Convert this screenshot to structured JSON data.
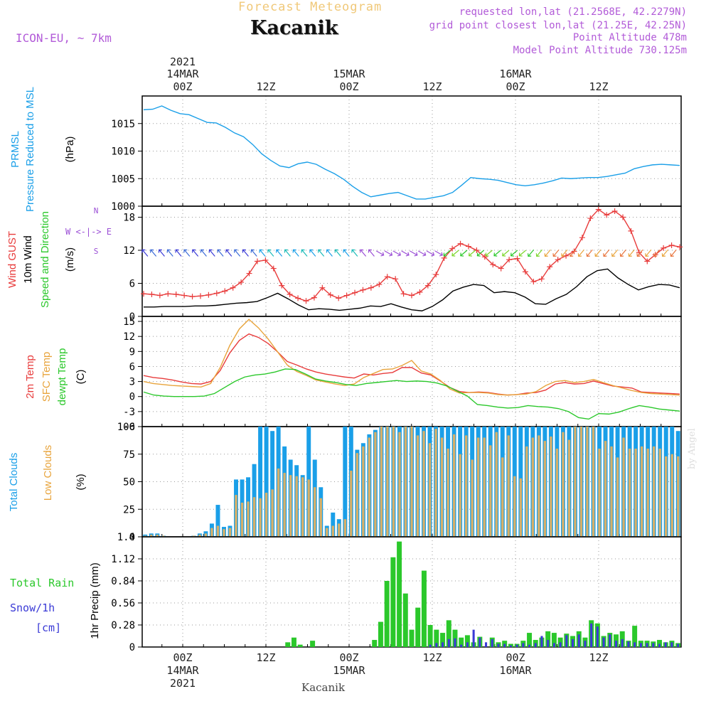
{
  "header": {
    "super_title": "Forecast Meteogram",
    "location": "Kacanik",
    "model": "ICON-EU, ~ 7km",
    "requested": "requested lon,lat (21.2568E, 42.2279N)",
    "grid_point": "grid point closest lon,lat (21.25E, 42.25N)",
    "point_altitude": "Point Altitude 478m",
    "model_altitude": "Model Point Altitude 730.125m",
    "footer": "Kacanik",
    "watermark": "by Angel"
  },
  "colors": {
    "blue": "#1a9fe8",
    "red": "#e83c3c",
    "orange": "#e8a43c",
    "green": "#2bc82b",
    "purple": "#9b4fd6",
    "navy": "#3a3ad6",
    "tan": "#d6b06a",
    "black": "#000000"
  },
  "chart_data": [
    {
      "type": "line",
      "panel": "pressure",
      "ylabel_lines": [
        "PRMSL",
        "Pressure Reduced to MSL",
        "(hPa)"
      ],
      "ylim": [
        1000,
        1020
      ],
      "yticks": [
        1000,
        1005,
        1010,
        1015
      ],
      "series": [
        {
          "name": "PRMSL",
          "values": [
            1017.5,
            1017.6,
            1018.2,
            1017.4,
            1016.8,
            1016.6,
            1015.9,
            1015.2,
            1015.1,
            1014.3,
            1013.3,
            1012.6,
            1011.2,
            1009.5,
            1008.3,
            1007.3,
            1007.0,
            1007.7,
            1008.0,
            1007.6,
            1006.7,
            1005.9,
            1004.9,
            1003.6,
            1002.5,
            1001.7,
            1002.0,
            1002.3,
            1002.5,
            1001.9,
            1001.3,
            1001.3,
            1001.6,
            1001.9,
            1002.5,
            1003.8,
            1005.2,
            1005.0,
            1004.9,
            1004.7,
            1004.3,
            1003.9,
            1003.7,
            1003.9,
            1004.2,
            1004.6,
            1005.1,
            1005.0,
            1005.1,
            1005.2,
            1005.2,
            1005.4,
            1005.7,
            1006.0,
            1006.8,
            1007.2,
            1007.5,
            1007.6,
            1007.5,
            1007.4
          ]
        }
      ]
    },
    {
      "type": "line",
      "panel": "wind",
      "ylabel_lines": [
        "Wind GUST",
        "10m Wind",
        "Speed and Direction",
        "(m/s)"
      ],
      "compass": "W <-|-> E",
      "ylim": [
        0,
        20
      ],
      "yticks": [
        0,
        6,
        12,
        18
      ],
      "series": [
        {
          "name": "Wind GUST",
          "values": [
            4.1,
            4.0,
            3.8,
            4.1,
            4.0,
            3.8,
            3.6,
            3.7,
            3.9,
            4.2,
            4.6,
            5.2,
            6.2,
            7.8,
            10.0,
            10.2,
            8.7,
            5.6,
            4.0,
            3.3,
            2.8,
            3.4,
            5.2,
            3.9,
            3.3,
            3.8,
            4.3,
            4.8,
            5.2,
            5.8,
            7.2,
            6.8,
            4.1,
            3.8,
            4.4,
            5.6,
            7.6,
            10.6,
            12.3,
            13.2,
            12.7,
            12.0,
            10.8,
            9.4,
            8.7,
            10.3,
            10.5,
            8.1,
            6.3,
            6.8,
            9.0,
            10.3,
            11.0,
            11.8,
            14.3,
            17.8,
            19.4,
            18.4,
            19.1,
            18.0,
            15.5,
            11.6,
            10.0,
            11.2,
            12.4,
            12.9,
            12.6
          ]
        },
        {
          "name": "10m Wind",
          "values": [
            1.7,
            1.7,
            1.8,
            1.8,
            1.8,
            1.9,
            1.9,
            2.0,
            2.2,
            2.4,
            2.5,
            2.7,
            3.4,
            4.2,
            3.2,
            2.1,
            1.2,
            1.4,
            1.3,
            1.1,
            1.3,
            1.5,
            1.9,
            1.8,
            2.3,
            1.7,
            1.2,
            1.0,
            1.8,
            3.0,
            4.6,
            5.3,
            5.8,
            5.6,
            4.3,
            4.5,
            4.3,
            3.5,
            2.3,
            2.2,
            3.2,
            4.0,
            5.4,
            7.2,
            8.3,
            8.6,
            7.0,
            5.8,
            4.8,
            5.4,
            5.8,
            5.7,
            5.2
          ]
        }
      ]
    },
    {
      "type": "line",
      "panel": "temperature",
      "ylabel_lines": [
        "2m Temp",
        "SFC Temp",
        "dewpt Temp",
        "(C)"
      ],
      "ylim": [
        -6,
        16
      ],
      "yticks": [
        -6,
        -3,
        0,
        3,
        6,
        9,
        12,
        15
      ],
      "series": [
        {
          "name": "2m Temp",
          "values": [
            4.2,
            3.8,
            3.6,
            3.3,
            2.9,
            2.6,
            2.5,
            3.0,
            5.2,
            8.7,
            11.2,
            12.5,
            11.8,
            10.6,
            8.9,
            7.0,
            6.3,
            5.5,
            4.9,
            4.5,
            4.2,
            3.9,
            3.7,
            4.5,
            4.3,
            4.6,
            4.8,
            5.8,
            5.8,
            4.7,
            4.3,
            3.1,
            1.8,
            1.0,
            0.8,
            0.9,
            0.8,
            0.5,
            0.3,
            0.4,
            0.7,
            0.8,
            1.3,
            2.5,
            2.8,
            2.5,
            2.6,
            3.1,
            2.6,
            2.1,
            1.9,
            1.7,
            0.9,
            0.8,
            0.7,
            0.6,
            0.5
          ]
        },
        {
          "name": "SFC Temp",
          "values": [
            3.0,
            2.6,
            2.4,
            2.2,
            2.1,
            2.0,
            1.9,
            2.6,
            5.8,
            10.2,
            13.5,
            15.4,
            13.7,
            11.5,
            8.9,
            6.3,
            5.0,
            4.2,
            3.3,
            2.9,
            2.5,
            2.2,
            2.5,
            3.8,
            4.6,
            5.4,
            5.5,
            6.2,
            7.2,
            5.1,
            4.5,
            3.2,
            1.5,
            0.7,
            0.8,
            0.8,
            0.7,
            0.4,
            0.3,
            0.4,
            0.5,
            1.0,
            2.2,
            3.0,
            3.2,
            2.8,
            3.0,
            3.4,
            2.8,
            2.2,
            1.7,
            1.2,
            0.8,
            0.6,
            0.5,
            0.4,
            0.3
          ]
        },
        {
          "name": "dewpt Temp",
          "values": [
            0.9,
            0.3,
            0.1,
            0.0,
            0.0,
            0.0,
            0.1,
            0.6,
            1.8,
            3.0,
            3.9,
            4.3,
            4.5,
            4.9,
            5.5,
            5.4,
            4.5,
            3.5,
            3.1,
            2.8,
            2.4,
            2.2,
            2.6,
            2.8,
            3.0,
            3.2,
            3.0,
            3.1,
            3.0,
            2.7,
            2.1,
            1.1,
            0.1,
            -1.6,
            -1.8,
            -2.1,
            -2.3,
            -2.2,
            -1.8,
            -2.0,
            -2.1,
            -2.4,
            -3.0,
            -4.2,
            -4.5,
            -3.4,
            -3.5,
            -3.1,
            -2.4,
            -1.8,
            -2.1,
            -2.5,
            -2.7,
            -2.9
          ]
        }
      ]
    },
    {
      "type": "bar",
      "panel": "clouds",
      "ylabel_lines": [
        "Total Clouds",
        "Low Clouds",
        "(%)"
      ],
      "ylim": [
        0,
        100
      ],
      "yticks": [
        0,
        25,
        50,
        75,
        100
      ],
      "series": [
        {
          "name": "Total Clouds",
          "values": [
            2,
            3,
            3,
            1,
            0,
            0,
            0,
            0,
            1,
            3,
            5,
            12,
            29,
            9,
            10,
            52,
            52,
            54,
            66,
            100,
            100,
            96,
            100,
            82,
            70,
            65,
            56,
            100,
            70,
            45,
            10,
            22,
            16,
            100,
            100,
            79,
            85,
            93,
            97,
            100,
            100,
            100,
            100,
            100,
            100,
            100,
            100,
            100,
            100,
            100,
            100,
            100,
            100,
            100,
            100,
            100,
            100,
            100,
            100,
            100,
            100,
            100,
            100,
            100,
            100,
            100,
            100,
            100,
            100,
            100,
            100,
            100,
            100,
            100,
            100,
            100,
            100,
            100,
            100,
            100,
            100,
            100,
            100,
            100,
            100,
            100,
            100,
            100,
            96
          ]
        },
        {
          "name": "Low Clouds",
          "values": [
            1,
            2,
            2,
            1,
            0,
            0,
            0,
            0,
            1,
            2,
            3,
            8,
            10,
            7,
            8,
            38,
            31,
            32,
            36,
            35,
            40,
            43,
            62,
            58,
            56,
            55,
            54,
            52,
            45,
            35,
            8,
            10,
            12,
            16,
            60,
            76,
            82,
            90,
            95,
            100,
            100,
            100,
            95,
            100,
            100,
            92,
            96,
            85,
            98,
            90,
            80,
            93,
            75,
            92,
            70,
            90,
            90,
            83,
            95,
            72,
            92,
            55,
            53,
            82,
            90,
            92,
            87,
            91,
            80,
            95,
            88,
            100,
            100,
            100,
            100,
            80,
            87,
            82,
            72,
            90,
            80,
            80,
            82,
            80,
            82,
            80,
            73,
            75,
            73
          ]
        }
      ]
    },
    {
      "type": "bar",
      "panel": "precipitation",
      "ylabel_lines": [
        "Total Rain",
        "Snow/1h",
        "[cm]",
        "1hr Precip (mm)"
      ],
      "ylim": [
        0,
        1.4
      ],
      "yticks": [
        0,
        0.28,
        0.56,
        0.84,
        1.12,
        1.4
      ],
      "series": [
        {
          "name": "Total Rain",
          "values": [
            0,
            0,
            0,
            0,
            0,
            0,
            0,
            0,
            0,
            0,
            0,
            0,
            0,
            0,
            0,
            0,
            0,
            0,
            0,
            0,
            0,
            0,
            0,
            0.06,
            0.12,
            0.03,
            0,
            0.08,
            0,
            0,
            0,
            0,
            0,
            0,
            0,
            0,
            0,
            0.09,
            0.32,
            0.84,
            1.14,
            1.34,
            0.68,
            0.22,
            0.5,
            0.97,
            0.28,
            0.22,
            0.18,
            0.34,
            0.22,
            0.12,
            0.15,
            0.06,
            0.13,
            0,
            0.12,
            0.06,
            0.08,
            0.04,
            0.04,
            0.08,
            0.18,
            0.09,
            0.12,
            0.2,
            0.18,
            0.12,
            0.17,
            0.14,
            0.2,
            0.12,
            0.34,
            0.3,
            0.14,
            0.18,
            0.16,
            0.2,
            0.08,
            0.27,
            0.08,
            0.08,
            0.07,
            0.09,
            0.06,
            0.08,
            0.05
          ]
        },
        {
          "name": "Snow/1h",
          "values": [
            0,
            0,
            0,
            0,
            0,
            0,
            0,
            0,
            0,
            0,
            0,
            0,
            0,
            0,
            0,
            0,
            0,
            0,
            0,
            0,
            0,
            0,
            0,
            0,
            0,
            0,
            0,
            0,
            0,
            0,
            0,
            0,
            0,
            0,
            0,
            0,
            0,
            0,
            0,
            0,
            0,
            0,
            0,
            0,
            0,
            0,
            0.03,
            0.05,
            0.06,
            0.1,
            0.11,
            0.03,
            0.06,
            0.22,
            0.12,
            0.06,
            0.1,
            0.04,
            0.04,
            0.02,
            0.03,
            0.05,
            0.03,
            0.05,
            0.14,
            0.09,
            0.05,
            0.06,
            0.15,
            0.1,
            0.16,
            0.08,
            0.3,
            0.26,
            0.12,
            0.16,
            0.08,
            0.1,
            0.07,
            0.06,
            0.05,
            0.05,
            0.05,
            0.04,
            0.06,
            0.06,
            0.04
          ]
        }
      ]
    }
  ],
  "xaxis": {
    "top_labels": [
      {
        "top": "2021",
        "mid": "14MAR",
        "bot": "00Z",
        "hour": 0
      },
      {
        "top": "",
        "mid": "",
        "bot": "12Z",
        "hour": 12
      },
      {
        "top": "",
        "mid": "15MAR",
        "bot": "00Z",
        "hour": 24
      },
      {
        "top": "",
        "mid": "",
        "bot": "12Z",
        "hour": 36
      },
      {
        "top": "",
        "mid": "16MAR",
        "bot": "00Z",
        "hour": 48
      },
      {
        "top": "",
        "mid": "",
        "bot": "12Z",
        "hour": 60
      }
    ],
    "bottom_labels": [
      {
        "a": "00Z",
        "b": "14MAR",
        "c": "2021",
        "hour": 0
      },
      {
        "a": "12Z",
        "b": "",
        "c": "",
        "hour": 12
      },
      {
        "a": "00Z",
        "b": "15MAR",
        "c": "",
        "hour": 24
      },
      {
        "a": "12Z",
        "b": "",
        "c": "",
        "hour": 36
      },
      {
        "a": "00Z",
        "b": "16MAR",
        "c": "",
        "hour": 48
      },
      {
        "a": "12Z",
        "b": "",
        "c": "",
        "hour": 60
      }
    ]
  }
}
